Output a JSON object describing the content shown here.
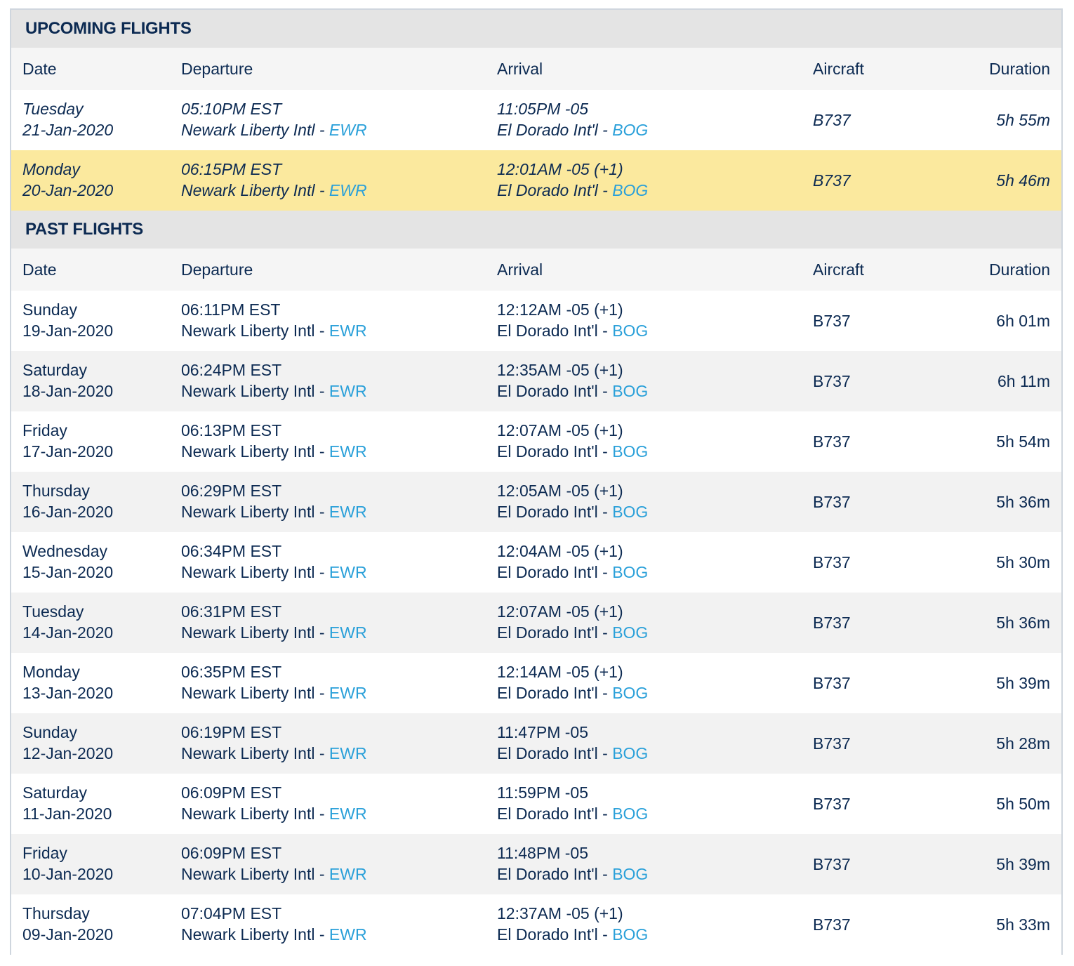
{
  "columns": {
    "date": "Date",
    "departure": "Departure",
    "arrival": "Arrival",
    "aircraft": "Aircraft",
    "duration": "Duration"
  },
  "colors": {
    "text": "#0c2a52",
    "airport_code": "#2aa0d9",
    "highlight_row": "#fbe99e",
    "section_header_bg": "#e4e4e4"
  },
  "upcoming": {
    "title": "UPCOMING FLIGHTS",
    "rows": [
      {
        "day": "Tuesday",
        "date": "21-Jan-2020",
        "dep_time": "05:10PM EST",
        "dep_airport": "Newark Liberty Intl - ",
        "dep_code": "EWR",
        "arr_time": "11:05PM -05",
        "arr_airport": "El Dorado Int'l - ",
        "arr_code": "BOG",
        "aircraft": "B737",
        "duration": "5h 55m"
      },
      {
        "day": "Monday",
        "date": "20-Jan-2020",
        "dep_time": "06:15PM EST",
        "dep_airport": "Newark Liberty Intl - ",
        "dep_code": "EWR",
        "arr_time": "12:01AM -05 (+1)",
        "arr_airport": "El Dorado Int'l - ",
        "arr_code": "BOG",
        "aircraft": "B737",
        "duration": "5h 46m"
      }
    ]
  },
  "past": {
    "title": "PAST FLIGHTS",
    "rows": [
      {
        "day": "Sunday",
        "date": "19-Jan-2020",
        "dep_time": "06:11PM EST",
        "dep_airport": "Newark Liberty Intl - ",
        "dep_code": "EWR",
        "arr_time": "12:12AM -05 (+1)",
        "arr_airport": "El Dorado Int'l - ",
        "arr_code": "BOG",
        "aircraft": "B737",
        "duration": "6h 01m"
      },
      {
        "day": "Saturday",
        "date": "18-Jan-2020",
        "dep_time": "06:24PM EST",
        "dep_airport": "Newark Liberty Intl - ",
        "dep_code": "EWR",
        "arr_time": "12:35AM -05 (+1)",
        "arr_airport": "El Dorado Int'l - ",
        "arr_code": "BOG",
        "aircraft": "B737",
        "duration": "6h 11m"
      },
      {
        "day": "Friday",
        "date": "17-Jan-2020",
        "dep_time": "06:13PM EST",
        "dep_airport": "Newark Liberty Intl - ",
        "dep_code": "EWR",
        "arr_time": "12:07AM -05 (+1)",
        "arr_airport": "El Dorado Int'l - ",
        "arr_code": "BOG",
        "aircraft": "B737",
        "duration": "5h 54m"
      },
      {
        "day": "Thursday",
        "date": "16-Jan-2020",
        "dep_time": "06:29PM EST",
        "dep_airport": "Newark Liberty Intl - ",
        "dep_code": "EWR",
        "arr_time": "12:05AM -05 (+1)",
        "arr_airport": "El Dorado Int'l - ",
        "arr_code": "BOG",
        "aircraft": "B737",
        "duration": "5h 36m"
      },
      {
        "day": "Wednesday",
        "date": "15-Jan-2020",
        "dep_time": "06:34PM EST",
        "dep_airport": "Newark Liberty Intl - ",
        "dep_code": "EWR",
        "arr_time": "12:04AM -05 (+1)",
        "arr_airport": "El Dorado Int'l - ",
        "arr_code": "BOG",
        "aircraft": "B737",
        "duration": "5h 30m"
      },
      {
        "day": "Tuesday",
        "date": "14-Jan-2020",
        "dep_time": "06:31PM EST",
        "dep_airport": "Newark Liberty Intl - ",
        "dep_code": "EWR",
        "arr_time": "12:07AM -05 (+1)",
        "arr_airport": "El Dorado Int'l - ",
        "arr_code": "BOG",
        "aircraft": "B737",
        "duration": "5h 36m"
      },
      {
        "day": "Monday",
        "date": "13-Jan-2020",
        "dep_time": "06:35PM EST",
        "dep_airport": "Newark Liberty Intl - ",
        "dep_code": "EWR",
        "arr_time": "12:14AM -05 (+1)",
        "arr_airport": "El Dorado Int'l - ",
        "arr_code": "BOG",
        "aircraft": "B737",
        "duration": "5h 39m"
      },
      {
        "day": "Sunday",
        "date": "12-Jan-2020",
        "dep_time": "06:19PM EST",
        "dep_airport": "Newark Liberty Intl - ",
        "dep_code": "EWR",
        "arr_time": "11:47PM -05",
        "arr_airport": "El Dorado Int'l - ",
        "arr_code": "BOG",
        "aircraft": "B737",
        "duration": "5h 28m"
      },
      {
        "day": "Saturday",
        "date": "11-Jan-2020",
        "dep_time": "06:09PM EST",
        "dep_airport": "Newark Liberty Intl - ",
        "dep_code": "EWR",
        "arr_time": "11:59PM -05",
        "arr_airport": "El Dorado Int'l - ",
        "arr_code": "BOG",
        "aircraft": "B737",
        "duration": "5h 50m"
      },
      {
        "day": "Friday",
        "date": "10-Jan-2020",
        "dep_time": "06:09PM EST",
        "dep_airport": "Newark Liberty Intl - ",
        "dep_code": "EWR",
        "arr_time": "11:48PM -05",
        "arr_airport": "El Dorado Int'l - ",
        "arr_code": "BOG",
        "aircraft": "B737",
        "duration": "5h 39m"
      },
      {
        "day": "Thursday",
        "date": "09-Jan-2020",
        "dep_time": "07:04PM EST",
        "dep_airport": "Newark Liberty Intl - ",
        "dep_code": "EWR",
        "arr_time": "12:37AM -05 (+1)",
        "arr_airport": "El Dorado Int'l - ",
        "arr_code": "BOG",
        "aircraft": "B737",
        "duration": "5h 33m"
      }
    ]
  }
}
